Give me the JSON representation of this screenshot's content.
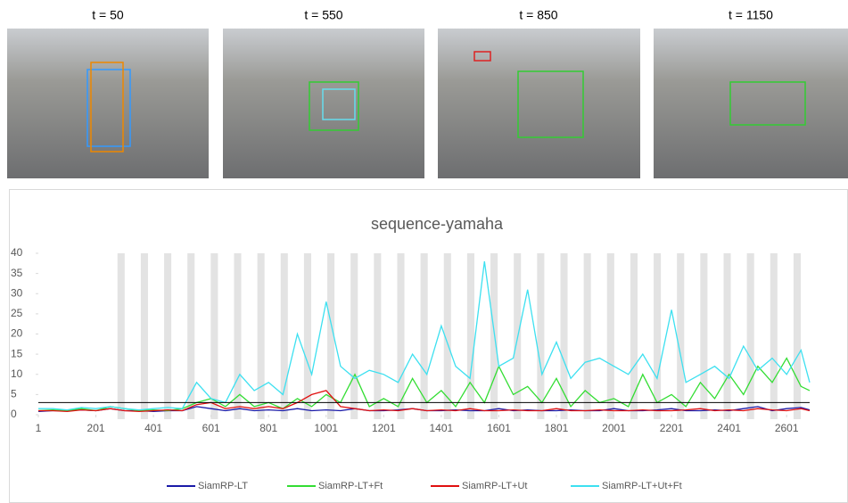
{
  "frames": [
    {
      "label": "t = 50"
    },
    {
      "label": "t = 550"
    },
    {
      "label": "t = 850"
    },
    {
      "label": "t = 1150"
    }
  ],
  "chart_data": {
    "type": "line",
    "title": "sequence-yamaha",
    "x": [
      1,
      51,
      101,
      151,
      201,
      251,
      301,
      351,
      401,
      451,
      501,
      551,
      601,
      651,
      701,
      751,
      801,
      851,
      901,
      951,
      1001,
      1051,
      1101,
      1151,
      1201,
      1251,
      1301,
      1351,
      1401,
      1451,
      1501,
      1551,
      1601,
      1651,
      1701,
      1751,
      1801,
      1851,
      1901,
      1951,
      2001,
      2051,
      2101,
      2151,
      2201,
      2251,
      2301,
      2351,
      2401,
      2451,
      2501,
      2551,
      2601,
      2651,
      2681
    ],
    "series": [
      {
        "name": "SiamRP-LT",
        "color": "#1a1aa8",
        "values": [
          0.8,
          1,
          1,
          1.2,
          1,
          1.5,
          1,
          1,
          0.8,
          1,
          1,
          2,
          1.5,
          1,
          1.5,
          1,
          1.2,
          1,
          1.5,
          1,
          1.2,
          1,
          1.5,
          1,
          1,
          1.2,
          1.5,
          1,
          1,
          1.2,
          1,
          1,
          1.5,
          1,
          1.2,
          1,
          1,
          1.2,
          1,
          1,
          1.5,
          1,
          1,
          1.2,
          1.5,
          1,
          1,
          1.2,
          1,
          1.5,
          2,
          1,
          1.5,
          1.8,
          1.2
        ]
      },
      {
        "name": "SiamRP-LT+Ft",
        "color": "#33dd33",
        "values": [
          1,
          1.2,
          1,
          1.5,
          1,
          2,
          1.5,
          1,
          1.2,
          1,
          1.5,
          3,
          4,
          2,
          5,
          2,
          3,
          1.5,
          4,
          2,
          5,
          3,
          10,
          2,
          4,
          2,
          9,
          3,
          6,
          2,
          8,
          3,
          12,
          5,
          7,
          3,
          9,
          2,
          6,
          3,
          4,
          2,
          10,
          3,
          5,
          2,
          8,
          4,
          10,
          5,
          12,
          8,
          14,
          7,
          6
        ]
      },
      {
        "name": "SiamRP-LT+Ut",
        "color": "#e01010",
        "values": [
          1,
          1,
          0.8,
          1.2,
          1,
          1.5,
          1,
          0.8,
          1,
          1.2,
          1,
          2.5,
          3,
          1.5,
          2,
          1.5,
          2,
          1.5,
          3,
          5,
          6,
          2,
          1.5,
          1,
          1.2,
          1,
          1.5,
          1,
          1.2,
          1,
          1.5,
          1,
          1,
          1.2,
          1,
          1,
          1.5,
          1,
          1,
          1.2,
          1,
          1,
          1.2,
          1,
          1,
          1.2,
          1.5,
          1,
          1.2,
          1,
          1.5,
          1.2,
          1,
          1.5,
          1
        ]
      },
      {
        "name": "SiamRP-LT+Ut+Ft",
        "color": "#3de0f0",
        "values": [
          1.5,
          1.5,
          1.2,
          1.8,
          1.5,
          2,
          1.5,
          1.2,
          1.5,
          1.8,
          1.5,
          8,
          4,
          3,
          10,
          6,
          8,
          5,
          20,
          10,
          28,
          12,
          9,
          11,
          10,
          8,
          15,
          10,
          22,
          12,
          9,
          38,
          12,
          14,
          31,
          10,
          18,
          9,
          13,
          14,
          12,
          10,
          15,
          9,
          26,
          8,
          10,
          12,
          9,
          17,
          11,
          14,
          10,
          16,
          8
        ]
      }
    ],
    "xlim": [
      1,
      2681
    ],
    "xticks": [
      1,
      201,
      401,
      601,
      801,
      1001,
      1201,
      1401,
      1601,
      1801,
      2001,
      2201,
      2401,
      2601
    ],
    "ylim": [
      0,
      40
    ],
    "yticks": [
      0,
      5,
      10,
      15,
      20,
      25,
      30,
      35,
      40
    ],
    "reference_line": 3,
    "bands": [
      [
        276,
        301
      ],
      [
        357,
        382
      ],
      [
        438,
        463
      ],
      [
        519,
        544
      ],
      [
        600,
        625
      ],
      [
        681,
        706
      ],
      [
        762,
        787
      ],
      [
        843,
        868
      ],
      [
        924,
        949
      ],
      [
        1005,
        1030
      ],
      [
        1086,
        1111
      ],
      [
        1167,
        1192
      ],
      [
        1248,
        1273
      ],
      [
        1329,
        1354
      ],
      [
        1410,
        1435
      ],
      [
        1491,
        1516
      ],
      [
        1572,
        1597
      ],
      [
        1653,
        1678
      ],
      [
        1734,
        1759
      ],
      [
        1815,
        1840
      ],
      [
        1896,
        1921
      ],
      [
        1977,
        2002
      ],
      [
        2058,
        2083
      ],
      [
        2139,
        2164
      ],
      [
        2220,
        2245
      ],
      [
        2301,
        2326
      ],
      [
        2382,
        2407
      ],
      [
        2463,
        2488
      ],
      [
        2544,
        2569
      ],
      [
        2625,
        2650
      ]
    ]
  }
}
